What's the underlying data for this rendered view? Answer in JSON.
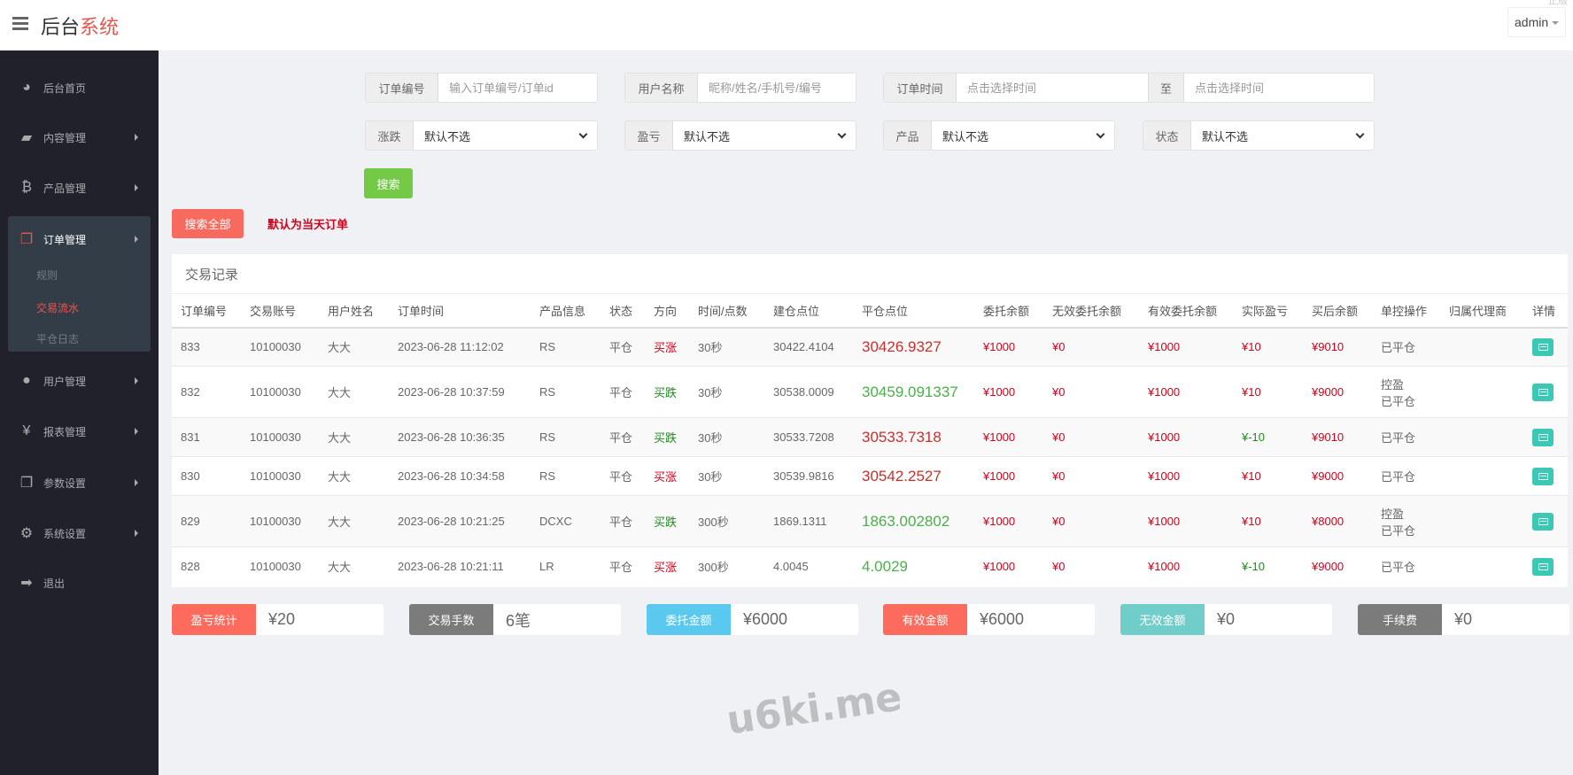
{
  "header": {
    "title_main": "后台",
    "title_accent": "系统",
    "user": "admin",
    "corner_text": "正版"
  },
  "sidebar": {
    "items": [
      {
        "label": "后台首页",
        "icon": "dashboard-icon"
      },
      {
        "label": "内容管理",
        "icon": "book-icon"
      },
      {
        "label": "产品管理",
        "icon": "bitcoin-icon"
      },
      {
        "label": "订单管理",
        "icon": "files-icon",
        "active": true
      },
      {
        "label": "用户管理",
        "icon": "user-icon"
      },
      {
        "label": "报表管理",
        "icon": "yen-icon"
      },
      {
        "label": "参数设置",
        "icon": "copy-icon"
      },
      {
        "label": "系统设置",
        "icon": "gears-icon"
      },
      {
        "label": "退出",
        "icon": "sign-out-icon"
      }
    ],
    "subitems": [
      {
        "label": "规则"
      },
      {
        "label": "交易流水",
        "active": true
      },
      {
        "label": "平仓日志"
      }
    ]
  },
  "filters": {
    "order_no": {
      "label": "订单编号",
      "placeholder": "输入订单编号/订单id"
    },
    "user_name": {
      "label": "用户名称",
      "placeholder": "昵称/姓名/手机号/编号"
    },
    "order_time": {
      "label": "订单时间",
      "placeholder": "点击选择时间",
      "to": "至",
      "placeholder2": "点击选择时间"
    },
    "rise_fall": {
      "label": "涨跌",
      "value": "默认不选"
    },
    "profit_loss": {
      "label": "盈亏",
      "value": "默认不选"
    },
    "product": {
      "label": "产品",
      "value": "默认不选"
    },
    "status": {
      "label": "状态",
      "value": "默认不选"
    },
    "search": "搜索",
    "search_all": "搜索全部",
    "note": "默认为当天订单"
  },
  "colors": {
    "red": "#d0021b",
    "green": "#1e8a1e",
    "search_btn": "#74c947",
    "search_all_btn": "#f76b5f",
    "detail_btn": "#3cc8b4"
  },
  "table": {
    "title": "交易记录",
    "columns": [
      "订单编号",
      "交易账号",
      "用户姓名",
      "订单时间",
      "产品信息",
      "状态",
      "方向",
      "时间/点数",
      "建仓点位",
      "平仓点位",
      "委托余额",
      "无效委托余额",
      "有效委托余额",
      "实际盈亏",
      "买后余额",
      "单控操作",
      "归属代理商",
      "详情"
    ],
    "rows": [
      {
        "id": "833",
        "account": "10100030",
        "name": "大大",
        "time": "2023-06-28 11:12:02",
        "product": "RS",
        "status": "平仓",
        "direction": "买涨",
        "duration": "30秒",
        "open": "30422.4104",
        "close": "30426.9327",
        "close_color": "red",
        "entrust": "¥1000",
        "invalid": "¥0",
        "valid": "¥1000",
        "pnl": "¥10",
        "pnl_color": "red",
        "balance": "¥9010",
        "control": "",
        "ctrl_status": "已平仓",
        "agent": ""
      },
      {
        "id": "832",
        "account": "10100030",
        "name": "大大",
        "time": "2023-06-28 10:37:59",
        "product": "RS",
        "status": "平仓",
        "direction": "买跌",
        "duration": "30秒",
        "open": "30538.0009",
        "close": "30459.091337",
        "close_color": "green",
        "entrust": "¥1000",
        "invalid": "¥0",
        "valid": "¥1000",
        "pnl": "¥10",
        "pnl_color": "red",
        "balance": "¥9000",
        "control": "控盈",
        "ctrl_status": "已平仓",
        "agent": ""
      },
      {
        "id": "831",
        "account": "10100030",
        "name": "大大",
        "time": "2023-06-28 10:36:35",
        "product": "RS",
        "status": "平仓",
        "direction": "买跌",
        "duration": "30秒",
        "open": "30533.7208",
        "close": "30533.7318",
        "close_color": "red",
        "entrust": "¥1000",
        "invalid": "¥0",
        "valid": "¥1000",
        "pnl": "¥-10",
        "pnl_color": "green",
        "balance": "¥9010",
        "control": "",
        "ctrl_status": "已平仓",
        "agent": ""
      },
      {
        "id": "830",
        "account": "10100030",
        "name": "大大",
        "time": "2023-06-28 10:34:58",
        "product": "RS",
        "status": "平仓",
        "direction": "买涨",
        "duration": "30秒",
        "open": "30539.9816",
        "close": "30542.2527",
        "close_color": "red",
        "entrust": "¥1000",
        "invalid": "¥0",
        "valid": "¥1000",
        "pnl": "¥10",
        "pnl_color": "red",
        "balance": "¥9000",
        "control": "",
        "ctrl_status": "已平仓",
        "agent": ""
      },
      {
        "id": "829",
        "account": "10100030",
        "name": "大大",
        "time": "2023-06-28 10:21:25",
        "product": "DCXC",
        "status": "平仓",
        "direction": "买跌",
        "duration": "300秒",
        "open": "1869.1311",
        "close": "1863.002802",
        "close_color": "green",
        "entrust": "¥1000",
        "invalid": "¥0",
        "valid": "¥1000",
        "pnl": "¥10",
        "pnl_color": "red",
        "balance": "¥8000",
        "control": "控盈",
        "ctrl_status": "已平仓",
        "agent": ""
      },
      {
        "id": "828",
        "account": "10100030",
        "name": "大大",
        "time": "2023-06-28 10:21:11",
        "product": "LR",
        "status": "平仓",
        "direction": "买涨",
        "duration": "300秒",
        "open": "4.0045",
        "close": "4.0029",
        "close_color": "green",
        "entrust": "¥1000",
        "invalid": "¥0",
        "valid": "¥1000",
        "pnl": "¥-10",
        "pnl_color": "green",
        "balance": "¥9000",
        "control": "",
        "ctrl_status": "已平仓",
        "agent": ""
      }
    ]
  },
  "watermark": "u6ki.me",
  "stats": [
    {
      "label": "盈亏统计",
      "value": "¥20",
      "color": "#fd6b5c"
    },
    {
      "label": "交易手数",
      "value": "6笔",
      "color": "#7b7b7b"
    },
    {
      "label": "委托金额",
      "value": "¥6000",
      "color": "#5bc8f0"
    },
    {
      "label": "有效金额",
      "value": "¥6000",
      "color": "#fd6b5c"
    },
    {
      "label": "无效金额",
      "value": "¥0",
      "color": "#70cdca"
    },
    {
      "label": "手续费",
      "value": "¥0",
      "color": "#7b7b7b"
    }
  ]
}
